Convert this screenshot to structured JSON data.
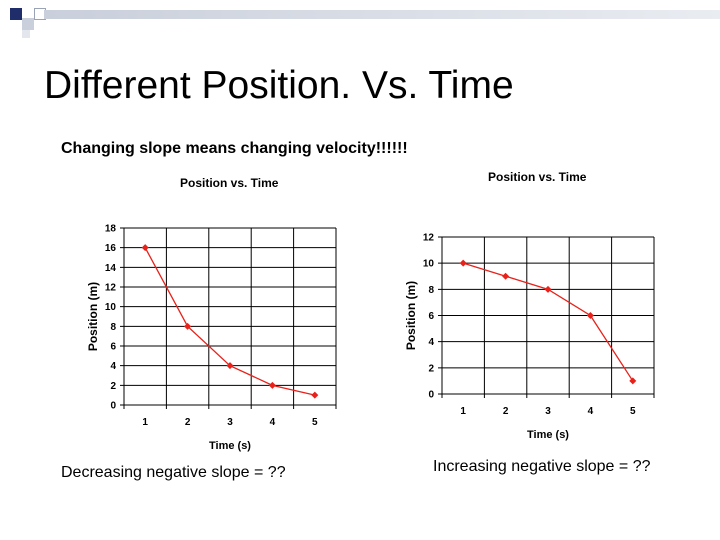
{
  "slide": {
    "title": "Different Position. Vs. Time",
    "subtitle": "Changing slope means changing velocity!!!!!!",
    "caption_left": "Decreasing negative slope = ??",
    "caption_right": "Increasing negative slope = ??"
  },
  "colors": {
    "accent_square": "#1f2d6b",
    "header_bar": "#cdd3de",
    "series_line": "#e8211a",
    "grid": "#000000"
  },
  "chart_data": [
    {
      "type": "line",
      "title": "Position vs. Time",
      "xlabel": "Time (s)",
      "ylabel": "Position (m)",
      "x": [
        1,
        2,
        3,
        4,
        5
      ],
      "series": [
        {
          "values": [
            16,
            8,
            4,
            2,
            1
          ]
        }
      ],
      "xticks": [
        "1",
        "2",
        "3",
        "4",
        "5"
      ],
      "yticks": [
        "0",
        "2",
        "4",
        "6",
        "8",
        "10",
        "12",
        "14",
        "16",
        "18"
      ],
      "xlim": [
        0.5,
        5.5
      ],
      "ylim": [
        0,
        18
      ],
      "grid": true
    },
    {
      "type": "line",
      "title": "Position  vs. Time",
      "xlabel": "Time (s)",
      "ylabel": "Position (m)",
      "x": [
        1,
        2,
        3,
        4,
        5
      ],
      "series": [
        {
          "values": [
            10,
            9,
            8,
            6,
            1
          ]
        }
      ],
      "xticks": [
        "1",
        "2",
        "3",
        "4",
        "5"
      ],
      "yticks": [
        "0",
        "2",
        "4",
        "6",
        "8",
        "10",
        "12"
      ],
      "xlim": [
        0.5,
        5.5
      ],
      "ylim": [
        0,
        12
      ],
      "grid": true
    }
  ]
}
